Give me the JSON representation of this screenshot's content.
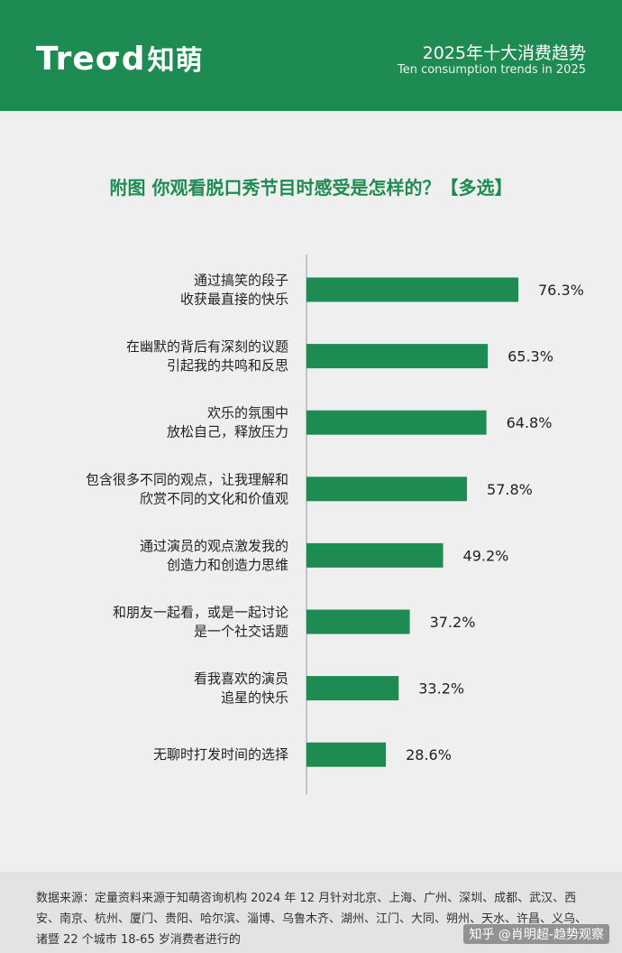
{
  "header": {
    "logo": "Treσd",
    "logo_cn": "知萌",
    "title": "2025年十大消费趋势",
    "subtitle": "Ten consumption trends in 2025"
  },
  "chart_data": {
    "type": "bar",
    "orientation": "horizontal",
    "title": "附图 你观看脱口秀节目时感受是怎样的？【多选】",
    "categories": [
      [
        "通过搞笑的段子",
        "收获最直接的快乐"
      ],
      [
        "在幽默的背后有深刻的议题",
        "引起我的共鸣和反思"
      ],
      [
        "欢乐的氛围中",
        "放松自己，释放压力"
      ],
      [
        "包含很多不同的观点，让我理解和",
        "欣赏不同的文化和价值观"
      ],
      [
        "通过演员的观点激发我的",
        "创造力和创造力思维"
      ],
      [
        "和朋友一起看，或是一起讨论",
        "是一个社交话题"
      ],
      [
        "看我喜欢的演员",
        "追星的快乐"
      ],
      [
        "无聊时打发时间的选择"
      ]
    ],
    "values": [
      76.3,
      65.3,
      64.8,
      57.8,
      49.2,
      37.2,
      33.2,
      28.6
    ],
    "value_labels": [
      "76.3%",
      "65.3%",
      "64.8%",
      "57.8%",
      "49.2%",
      "37.2%",
      "33.2%",
      "28.6%"
    ],
    "xlim": [
      0,
      100
    ],
    "grid": false,
    "bar_color": "#1e8c52"
  },
  "footer": {
    "source": "数据来源：定量资料来源于知萌咨询机构 2024 年 12 月针对北京、上海、广州、深圳、成都、武汉、西安、南京、杭州、厦门、贵阳、哈尔滨、淄博、乌鲁木齐、湖州、江门、大同、朔州、天水、许昌、义乌、诸暨 22 个城市 18-65 岁消费者进行的",
    "watermark": "知乎 @肖明超-趋势观察"
  }
}
